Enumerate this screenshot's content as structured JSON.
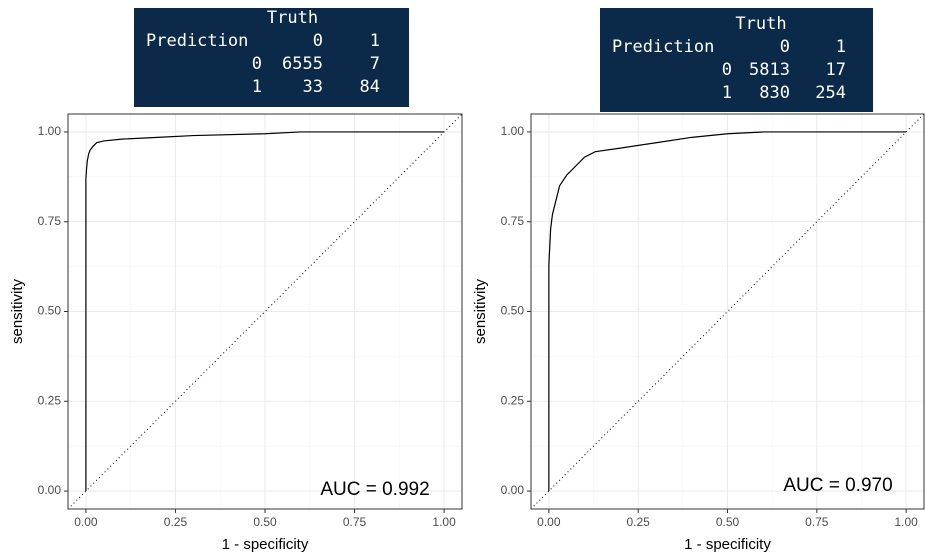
{
  "chart_data": [
    {
      "type": "line",
      "x_label": "1 - specificity",
      "y_label": "sensitivity",
      "annotation": "AUC = 0.992",
      "x": [
        0,
        0,
        0.002,
        0.004,
        0.008,
        0.012,
        0.02,
        0.03,
        0.05,
        0.1,
        0.2,
        0.3,
        0.5,
        0.6,
        1
      ],
      "values": [
        0,
        0.87,
        0.9,
        0.92,
        0.94,
        0.95,
        0.96,
        0.97,
        0.975,
        0.98,
        0.985,
        0.99,
        0.995,
        1,
        1
      ],
      "color": "#000000",
      "diagonal": true,
      "grid": true,
      "xlim": [
        -0.05,
        1.05
      ],
      "ylim": [
        -0.05,
        1.05
      ],
      "xticks": [
        {
          "value": 0,
          "label": "0.00"
        },
        {
          "value": 0.25,
          "label": "0.25"
        },
        {
          "value": 0.5,
          "label": "0.50"
        },
        {
          "value": 0.75,
          "label": "0.75"
        },
        {
          "value": 1,
          "label": "1.00"
        }
      ],
      "yticks": [
        {
          "value": 0,
          "label": "0.00"
        },
        {
          "value": 0.25,
          "label": "0.25"
        },
        {
          "value": 0.5,
          "label": "0.50"
        },
        {
          "value": 0.75,
          "label": "0.75"
        },
        {
          "value": 1,
          "label": "1.00"
        }
      ],
      "confusion_matrix": {
        "title": "Truth",
        "row_title": "Prediction",
        "columns": [
          "0",
          "1"
        ],
        "rows": [
          "0",
          "1"
        ],
        "cells": [
          [
            6555,
            7
          ],
          [
            33,
            84
          ]
        ]
      }
    },
    {
      "type": "line",
      "x_label": "1 - specificity",
      "y_label": "sensitivity",
      "annotation": "AUC = 0.970",
      "x": [
        0,
        0,
        0.005,
        0.01,
        0.02,
        0.03,
        0.05,
        0.07,
        0.1,
        0.13,
        0.2,
        0.3,
        0.4,
        0.5,
        0.6,
        1
      ],
      "values": [
        0,
        0.63,
        0.73,
        0.77,
        0.81,
        0.85,
        0.88,
        0.9,
        0.93,
        0.945,
        0.955,
        0.97,
        0.985,
        0.995,
        1,
        1
      ],
      "color": "#000000",
      "diagonal": true,
      "grid": true,
      "xlim": [
        -0.05,
        1.05
      ],
      "ylim": [
        -0.05,
        1.05
      ],
      "xticks": [
        {
          "value": 0,
          "label": "0.00"
        },
        {
          "value": 0.25,
          "label": "0.25"
        },
        {
          "value": 0.5,
          "label": "0.50"
        },
        {
          "value": 0.75,
          "label": "0.75"
        },
        {
          "value": 1,
          "label": "1.00"
        }
      ],
      "yticks": [
        {
          "value": 0,
          "label": "0.00"
        },
        {
          "value": 0.25,
          "label": "0.25"
        },
        {
          "value": 0.5,
          "label": "0.50"
        },
        {
          "value": 0.75,
          "label": "0.75"
        },
        {
          "value": 1,
          "label": "1.00"
        }
      ],
      "confusion_matrix": {
        "title": "Truth",
        "row_title": "Prediction",
        "columns": [
          "0",
          "1"
        ],
        "rows": [
          "0",
          "1"
        ],
        "cells": [
          [
            5813,
            17
          ],
          [
            830,
            254
          ]
        ]
      }
    }
  ]
}
